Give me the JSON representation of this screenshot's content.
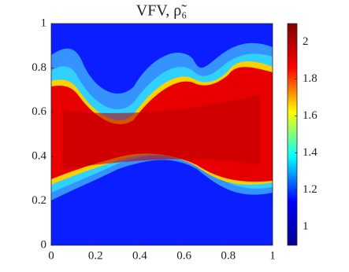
{
  "chart_data": {
    "type": "heatmap",
    "title": "VFV, ρ̃₆",
    "xlim": [
      0,
      1
    ],
    "ylim": [
      0,
      1
    ],
    "xticks": [
      0,
      0.2,
      0.4,
      0.6,
      0.8,
      1
    ],
    "yticks": [
      0,
      0.2,
      0.4,
      0.6,
      0.8,
      1
    ],
    "clim": [
      0.9,
      2.1
    ],
    "cticks": [
      1,
      1.2,
      1.4,
      1.6,
      1.8,
      2
    ],
    "colormap": "jet"
  }
}
